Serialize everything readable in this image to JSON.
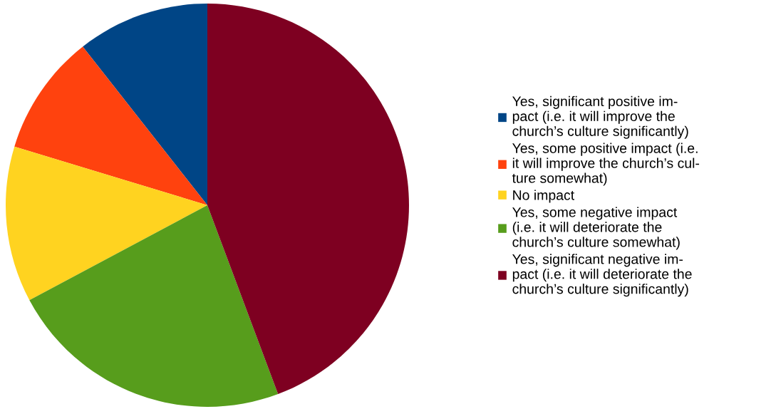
{
  "chart_data": {
    "type": "pie",
    "categories": [
      "Yes, significant positive im-\npact (i.e. it will improve the\nchurch’s culture significantly)",
      "Yes, some positive impact (i.e.\nit will improve the church’s cul-\nture somewhat)",
      "No impact",
      "Yes, some negative impact\n(i.e. it will deteriorate the\nchurch’s culture somewhat)",
      "Yes, significant negative im-\npact (i.e. it will deteriorate the\nchurch’s culture significantly)"
    ],
    "values": [
      10.6,
      9.7,
      12.5,
      22.9,
      44.3
    ],
    "colors": [
      "#004586",
      "#ff420e",
      "#ffd320",
      "#579d1c",
      "#7e0021"
    ],
    "legend": "right"
  }
}
